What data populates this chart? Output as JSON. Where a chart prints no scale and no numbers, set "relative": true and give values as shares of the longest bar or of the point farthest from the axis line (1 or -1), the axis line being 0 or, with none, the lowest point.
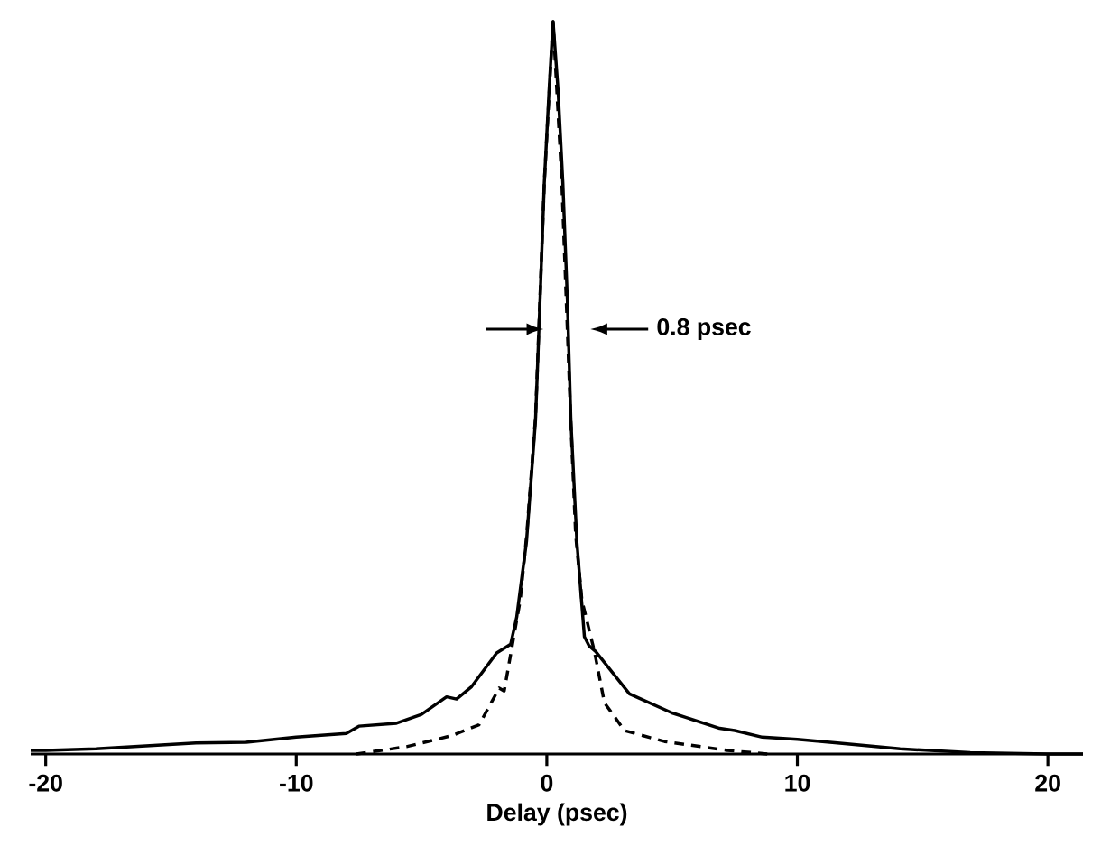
{
  "chart_data": {
    "type": "line",
    "relative": true,
    "xlabel": "Delay (psec)",
    "xlim": [
      -20.6,
      21.4
    ],
    "xticks": [
      -20,
      -10,
      0,
      10,
      20
    ],
    "annotations": [
      "0.8 psec"
    ],
    "series": [
      {
        "color": "#000000",
        "line_style": "solid",
        "x": [
          -20.6,
          -20,
          -18,
          -14,
          -12,
          -10,
          -8,
          -7.5,
          -6,
          -5,
          -4,
          -3.6,
          -3,
          -2,
          -1.44,
          -1.2,
          -0.81,
          -0.45,
          -0.27,
          -0.1,
          0.09,
          0.25,
          0.45,
          0.64,
          0.82,
          0.96,
          1.2,
          1.5,
          1.68,
          1.95,
          3.3,
          5.0,
          6.9,
          7.5,
          8.6,
          10,
          11.6,
          14.1,
          16.9,
          20,
          21.4
        ],
        "values": [
          0.005,
          0.005,
          0.007,
          0.015,
          0.016,
          0.023,
          0.028,
          0.038,
          0.042,
          0.054,
          0.078,
          0.075,
          0.092,
          0.138,
          0.15,
          0.187,
          0.29,
          0.456,
          0.62,
          0.78,
          0.906,
          1.0,
          0.906,
          0.78,
          0.62,
          0.456,
          0.29,
          0.16,
          0.148,
          0.14,
          0.082,
          0.056,
          0.035,
          0.032,
          0.023,
          0.02,
          0.015,
          0.007,
          0.002,
          0.0,
          0.0
        ]
      },
      {
        "color": "#000000",
        "line_style": "dashed",
        "x": [
          -7.6,
          -5.6,
          -3.8,
          -2.7,
          -1.9,
          -1.7,
          -1.06,
          -0.8,
          -0.45,
          -0.1,
          0.25,
          0.6,
          0.95,
          1.15,
          1.4,
          1.9,
          2.3,
          3.1,
          4.7,
          7.2,
          8.8
        ],
        "values": [
          0.0,
          0.01,
          0.025,
          0.04,
          0.09,
          0.086,
          0.21,
          0.3,
          0.46,
          0.78,
          1.0,
          0.78,
          0.46,
          0.3,
          0.21,
          0.14,
          0.07,
          0.032,
          0.017,
          0.005,
          0.0
        ]
      }
    ]
  }
}
